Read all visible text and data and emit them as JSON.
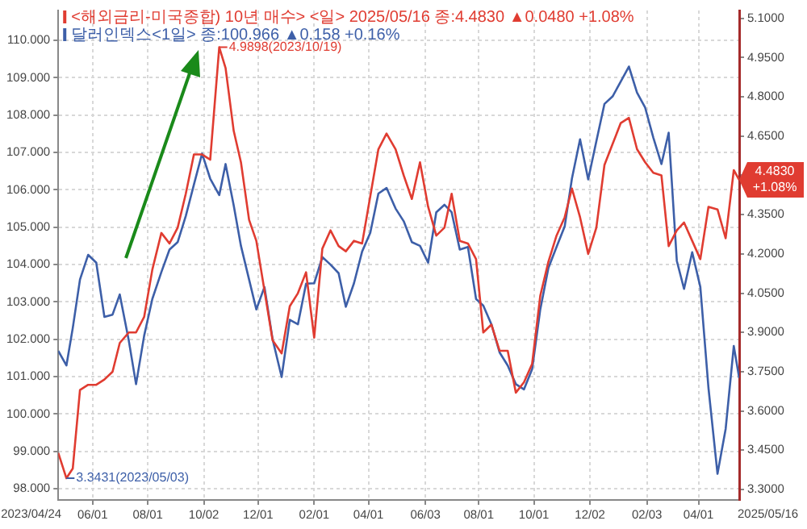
{
  "chart_data": {
    "type": "line",
    "x": [
      "2023-04-24",
      "2023-05-03",
      "2023-05-10",
      "2023-05-18",
      "2023-05-27",
      "2023-06-05",
      "2023-06-14",
      "2023-06-23",
      "2023-07-01",
      "2023-07-11",
      "2023-07-19",
      "2023-07-28",
      "2023-08-06",
      "2023-08-16",
      "2023-08-25",
      "2023-09-03",
      "2023-09-12",
      "2023-09-21",
      "2023-09-30",
      "2023-10-09",
      "2023-10-19",
      "2023-10-26",
      "2023-11-04",
      "2023-11-12",
      "2023-11-21",
      "2023-11-29",
      "2023-12-08",
      "2023-12-17",
      "2023-12-27",
      "2024-01-05",
      "2024-01-14",
      "2024-01-23",
      "2024-02-01",
      "2024-02-10",
      "2024-02-19",
      "2024-02-28",
      "2024-03-07",
      "2024-03-16",
      "2024-03-25",
      "2024-04-03",
      "2024-04-12",
      "2024-04-21",
      "2024-05-01",
      "2024-05-10",
      "2024-05-19",
      "2024-05-28",
      "2024-06-06",
      "2024-06-15",
      "2024-06-24",
      "2024-07-02",
      "2024-07-11",
      "2024-07-20",
      "2024-07-29",
      "2024-08-06",
      "2024-08-15",
      "2024-08-24",
      "2024-09-02",
      "2024-09-11",
      "2024-09-20",
      "2024-09-29",
      "2024-10-08",
      "2024-10-17",
      "2024-10-26",
      "2024-11-04",
      "2024-11-12",
      "2024-11-21",
      "2024-11-30",
      "2024-12-09",
      "2024-12-18",
      "2024-12-27",
      "2025-01-05",
      "2025-01-14",
      "2025-01-23",
      "2025-02-01",
      "2025-02-10",
      "2025-02-19",
      "2025-02-27",
      "2025-03-08",
      "2025-03-16",
      "2025-03-25",
      "2025-04-03",
      "2025-04-12",
      "2025-04-22",
      "2025-05-01",
      "2025-05-10",
      "2025-05-16"
    ],
    "series": [
      {
        "name": "<해외금리-미국종합) 10년 매수> <일> 2025/05/16 종:4.4830 ▲0.0480 +1.08%",
        "color": "#e03c31",
        "axis": "y2",
        "values": [
          3.44,
          3.3431,
          3.38,
          3.68,
          3.7,
          3.7,
          3.72,
          3.75,
          3.86,
          3.9,
          3.9,
          3.96,
          4.14,
          4.28,
          4.24,
          4.3,
          4.43,
          4.58,
          4.58,
          4.56,
          4.9898,
          4.91,
          4.67,
          4.55,
          4.33,
          4.25,
          4.06,
          3.87,
          3.82,
          4.0,
          4.05,
          4.13,
          3.88,
          4.22,
          4.29,
          4.23,
          4.21,
          4.25,
          4.24,
          4.42,
          4.6,
          4.66,
          4.6,
          4.5,
          4.41,
          4.55,
          4.38,
          4.27,
          4.3,
          4.43,
          4.25,
          4.24,
          4.18,
          3.9,
          3.93,
          3.83,
          3.83,
          3.67,
          3.71,
          3.78,
          4.04,
          4.17,
          4.27,
          4.34,
          4.45,
          4.34,
          4.2,
          4.3,
          4.54,
          4.62,
          4.7,
          4.72,
          4.6,
          4.55,
          4.51,
          4.5,
          4.23,
          4.29,
          4.32,
          4.25,
          4.18,
          4.38,
          4.37,
          4.26,
          4.52,
          4.483
        ]
      },
      {
        "name": "달러인덱스<1일> 종:100.966 ▲0.158 +0.16%",
        "color": "#3d5fa8",
        "values": [
          101.69,
          101.3,
          102.3,
          103.6,
          104.26,
          104.05,
          102.6,
          102.66,
          103.2,
          101.96,
          100.8,
          102.1,
          103.08,
          103.8,
          104.4,
          104.6,
          105.3,
          106.14,
          106.97,
          106.3,
          105.86,
          106.69,
          105.58,
          104.5,
          103.6,
          102.8,
          103.4,
          102.0,
          100.99,
          102.52,
          102.4,
          103.49,
          103.5,
          104.2,
          104.0,
          103.77,
          102.87,
          103.5,
          104.35,
          104.85,
          105.9,
          106.05,
          105.5,
          105.16,
          104.6,
          104.5,
          104.05,
          105.4,
          105.6,
          105.4,
          104.4,
          104.47,
          103.08,
          102.9,
          102.4,
          101.65,
          101.3,
          100.8,
          100.66,
          101.2,
          102.8,
          103.91,
          104.47,
          105.02,
          106.3,
          107.35,
          106.28,
          107.3,
          108.3,
          108.5,
          108.9,
          109.3,
          108.6,
          108.2,
          107.4,
          106.69,
          107.53,
          104.1,
          103.35,
          104.33,
          103.4,
          100.7,
          98.4,
          99.6,
          101.82,
          100.966
        ]
      }
    ],
    "xlim": [
      "2023-04-24",
      "2025-05-16"
    ],
    "xticks": [
      {
        "value": "2023-06-01",
        "label": "06/01"
      },
      {
        "value": "2023-08-01",
        "label": "08/01"
      },
      {
        "value": "2023-10-02",
        "label": "10/02"
      },
      {
        "value": "2023-12-01",
        "label": "12/01"
      },
      {
        "value": "2024-02-01",
        "label": "02/01"
      },
      {
        "value": "2024-04-01",
        "label": "04/01"
      },
      {
        "value": "2024-06-03",
        "label": "06/03"
      },
      {
        "value": "2024-08-01",
        "label": "08/01"
      },
      {
        "value": "2024-10-01",
        "label": "10/01"
      },
      {
        "value": "2024-12-02",
        "label": "12/02"
      },
      {
        "value": "2025-02-03",
        "label": "02/03"
      },
      {
        "value": "2025-04-01",
        "label": "04/01"
      }
    ],
    "ylim": [
      97.7,
      110.8
    ],
    "yticks": [
      {
        "value": 98,
        "label": "98.000"
      },
      {
        "value": 99,
        "label": "99.000"
      },
      {
        "value": 100,
        "label": "100.000"
      },
      {
        "value": 101,
        "label": "101.000"
      },
      {
        "value": 102,
        "label": "102.000"
      },
      {
        "value": 103,
        "label": "103.000"
      },
      {
        "value": 104,
        "label": "104.000"
      },
      {
        "value": 105,
        "label": "105.000"
      },
      {
        "value": 106,
        "label": "106.000"
      },
      {
        "value": 107,
        "label": "107.000"
      },
      {
        "value": 108,
        "label": "108.000"
      },
      {
        "value": 109,
        "label": "109.000"
      },
      {
        "value": 110,
        "label": "110.000"
      }
    ],
    "y2lim": [
      3.26,
      5.13
    ],
    "y2ticks": [
      {
        "value": 3.3,
        "label": "3.3000"
      },
      {
        "value": 3.45,
        "label": "3.4500"
      },
      {
        "value": 3.6,
        "label": "3.6000"
      },
      {
        "value": 3.75,
        "label": "3.7500"
      },
      {
        "value": 3.9,
        "label": "3.9000"
      },
      {
        "value": 4.05,
        "label": "4.0500"
      },
      {
        "value": 4.2,
        "label": "4.2000"
      },
      {
        "value": 4.35,
        "label": "4.3500"
      },
      {
        "value": 4.5,
        "label": null
      },
      {
        "value": 4.65,
        "label": "4.6500"
      },
      {
        "value": 4.8,
        "label": "4.8000"
      },
      {
        "value": 4.95,
        "label": "4.9500"
      },
      {
        "value": 5.1,
        "label": "5.1000"
      }
    ],
    "annotations": [
      "4.9898(2023/10/19)",
      "3.3431(2023/05/03)",
      "4.4830 +1.08%",
      "2023/04/24",
      "2025/05/16"
    ],
    "grid": true,
    "legend": "top left",
    "marker": "none",
    "line_style": "solid"
  }
}
